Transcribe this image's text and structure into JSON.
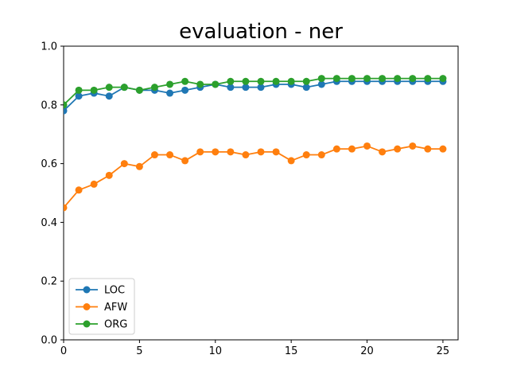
{
  "chart_data": {
    "type": "line",
    "title": "evaluation - ner",
    "xlabel": "",
    "ylabel": "",
    "x": [
      0,
      1,
      2,
      3,
      4,
      5,
      6,
      7,
      8,
      9,
      10,
      11,
      12,
      13,
      14,
      15,
      16,
      17,
      18,
      19,
      20,
      21,
      22,
      23,
      24,
      25
    ],
    "xlim": [
      0,
      26
    ],
    "ylim": [
      0,
      1.0
    ],
    "xticks": [
      0,
      5,
      10,
      15,
      20,
      25
    ],
    "xtick_labels": [
      "0",
      "5",
      "10",
      "15",
      "20",
      "25"
    ],
    "yticks": [
      0,
      0.2,
      0.4,
      0.6,
      0.8,
      1.0
    ],
    "ytick_labels": [
      "0.0",
      "0.2",
      "0.4",
      "0.6",
      "0.8",
      "1.0"
    ],
    "grid": false,
    "legend_position": "lower-left",
    "series": [
      {
        "name": "LOC",
        "color": "#1f77b4",
        "marker": "circle",
        "values": [
          0.78,
          0.83,
          0.84,
          0.83,
          0.86,
          0.85,
          0.85,
          0.84,
          0.85,
          0.86,
          0.87,
          0.86,
          0.86,
          0.86,
          0.87,
          0.87,
          0.86,
          0.87,
          0.88,
          0.88,
          0.88,
          0.88,
          0.88,
          0.88,
          0.88,
          0.88
        ]
      },
      {
        "name": "AFW",
        "color": "#ff7f0e",
        "marker": "circle",
        "values": [
          0.45,
          0.51,
          0.53,
          0.56,
          0.6,
          0.59,
          0.63,
          0.63,
          0.61,
          0.64,
          0.64,
          0.64,
          0.63,
          0.64,
          0.64,
          0.61,
          0.63,
          0.63,
          0.65,
          0.65,
          0.66,
          0.64,
          0.65,
          0.66,
          0.65,
          0.65
        ]
      },
      {
        "name": "ORG",
        "color": "#2ca02c",
        "marker": "circle",
        "values": [
          0.8,
          0.85,
          0.85,
          0.86,
          0.86,
          0.85,
          0.86,
          0.87,
          0.88,
          0.87,
          0.87,
          0.88,
          0.88,
          0.88,
          0.88,
          0.88,
          0.88,
          0.89,
          0.89,
          0.89,
          0.89,
          0.89,
          0.89,
          0.89,
          0.89,
          0.89
        ]
      }
    ]
  }
}
